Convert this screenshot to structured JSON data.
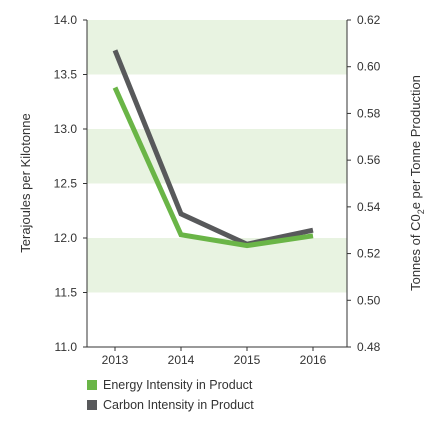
{
  "chart_data": {
    "type": "line",
    "categories": [
      "2013",
      "2014",
      "2015",
      "2016"
    ],
    "y_left": {
      "label": "Terajoules per Kilotonne",
      "range": [
        11.0,
        14.0
      ],
      "ticks": [
        "11.0",
        "11.5",
        "12.0",
        "12.5",
        "13.0",
        "13.5",
        "14.0"
      ]
    },
    "y_right": {
      "label_parts": [
        "Tonnes of C0",
        "2",
        "e per Tonne Production"
      ],
      "range": [
        0.48,
        0.62
      ],
      "ticks": [
        "0.48",
        "0.50",
        "0.52",
        "0.54",
        "0.56",
        "0.58",
        "0.60",
        "0.62"
      ]
    },
    "bands": "alternating light green horizontal bands at every 0.5 on left axis",
    "series": [
      {
        "name": "Energy Intensity in Product",
        "axis": "left",
        "color": "#6ab547",
        "values": [
          13.38,
          12.03,
          11.93,
          12.02
        ]
      },
      {
        "name": "Carbon Intensity in Product",
        "axis": "right",
        "color": "#58595b",
        "values": [
          0.607,
          0.537,
          0.524,
          0.53
        ]
      }
    ],
    "legend": "bottom-left",
    "colors": {
      "band": "#e8f3e1",
      "axis": "#333333"
    }
  }
}
